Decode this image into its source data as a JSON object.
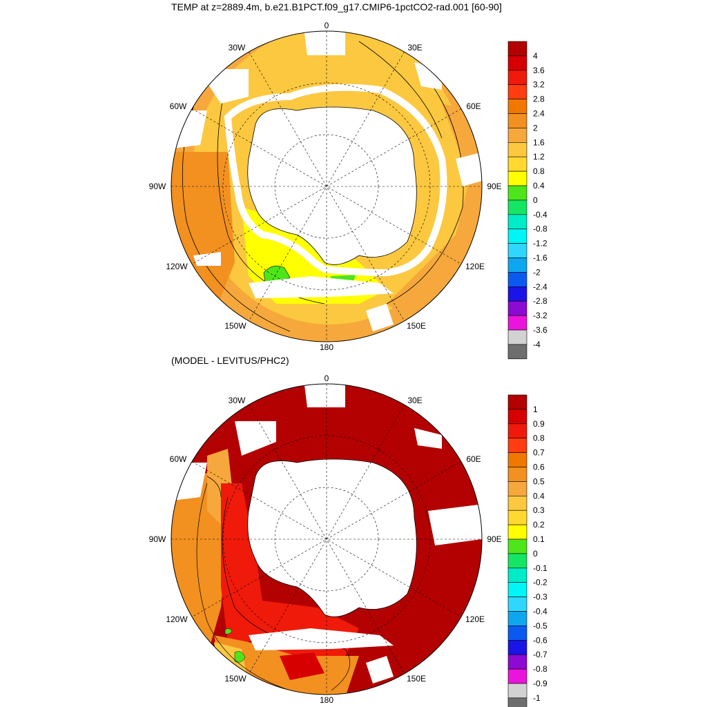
{
  "top_panel": {
    "title": "TEMP at z=2889.4m, b.e21.B1PCT.f09_g17.CMIP6-1pctCO2-rad.001 [60-90]",
    "colorbar": {
      "labels": [
        "4",
        "3.6",
        "3.2",
        "2.8",
        "2.4",
        "2",
        "1.6",
        "1.2",
        "0.8",
        "0.4",
        "0",
        "-0.4",
        "-0.8",
        "-1.2",
        "-1.6",
        "-2",
        "-2.4",
        "-2.8",
        "-3.2",
        "-3.6",
        "-4"
      ]
    }
  },
  "bottom_panel": {
    "title": "(MODEL - LEVITUS/PHC2)",
    "colorbar": {
      "labels": [
        "1",
        "0.9",
        "0.8",
        "0.7",
        "0.6",
        "0.5",
        "0.4",
        "0.3",
        "0.2",
        "0.1",
        "0",
        "-0.1",
        "-0.2",
        "-0.3",
        "-0.4",
        "-0.5",
        "-0.6",
        "-0.7",
        "-0.8",
        "-0.9",
        "-1"
      ]
    }
  },
  "longitude_labels": {
    "n0": "0",
    "n30e": "30E",
    "n60e": "60E",
    "n90e": "90E",
    "n120e": "120E",
    "n150e": "150E",
    "s180": "180",
    "n150w": "150W",
    "n120w": "120W",
    "n90w": "90W",
    "n60w": "60W",
    "n30w": "30W"
  },
  "colors": {
    "palette_top_to_bottom": [
      "#b30000",
      "#d60000",
      "#ef1a0a",
      "#ff3d10",
      "#f07800",
      "#f29020",
      "#f6a83c",
      "#fbc840",
      "#ffd92f",
      "#ffff00",
      "#4ee61a",
      "#14e664",
      "#00ebc8",
      "#00f5f5",
      "#2fd7ff",
      "#0fa6f0",
      "#0a5af0",
      "#1a14e6",
      "#8c0ad2",
      "#eb14dc",
      "#d2d2d2",
      "#6e6e6e"
    ],
    "land": "#ffffff",
    "coastline": "#000000"
  }
}
